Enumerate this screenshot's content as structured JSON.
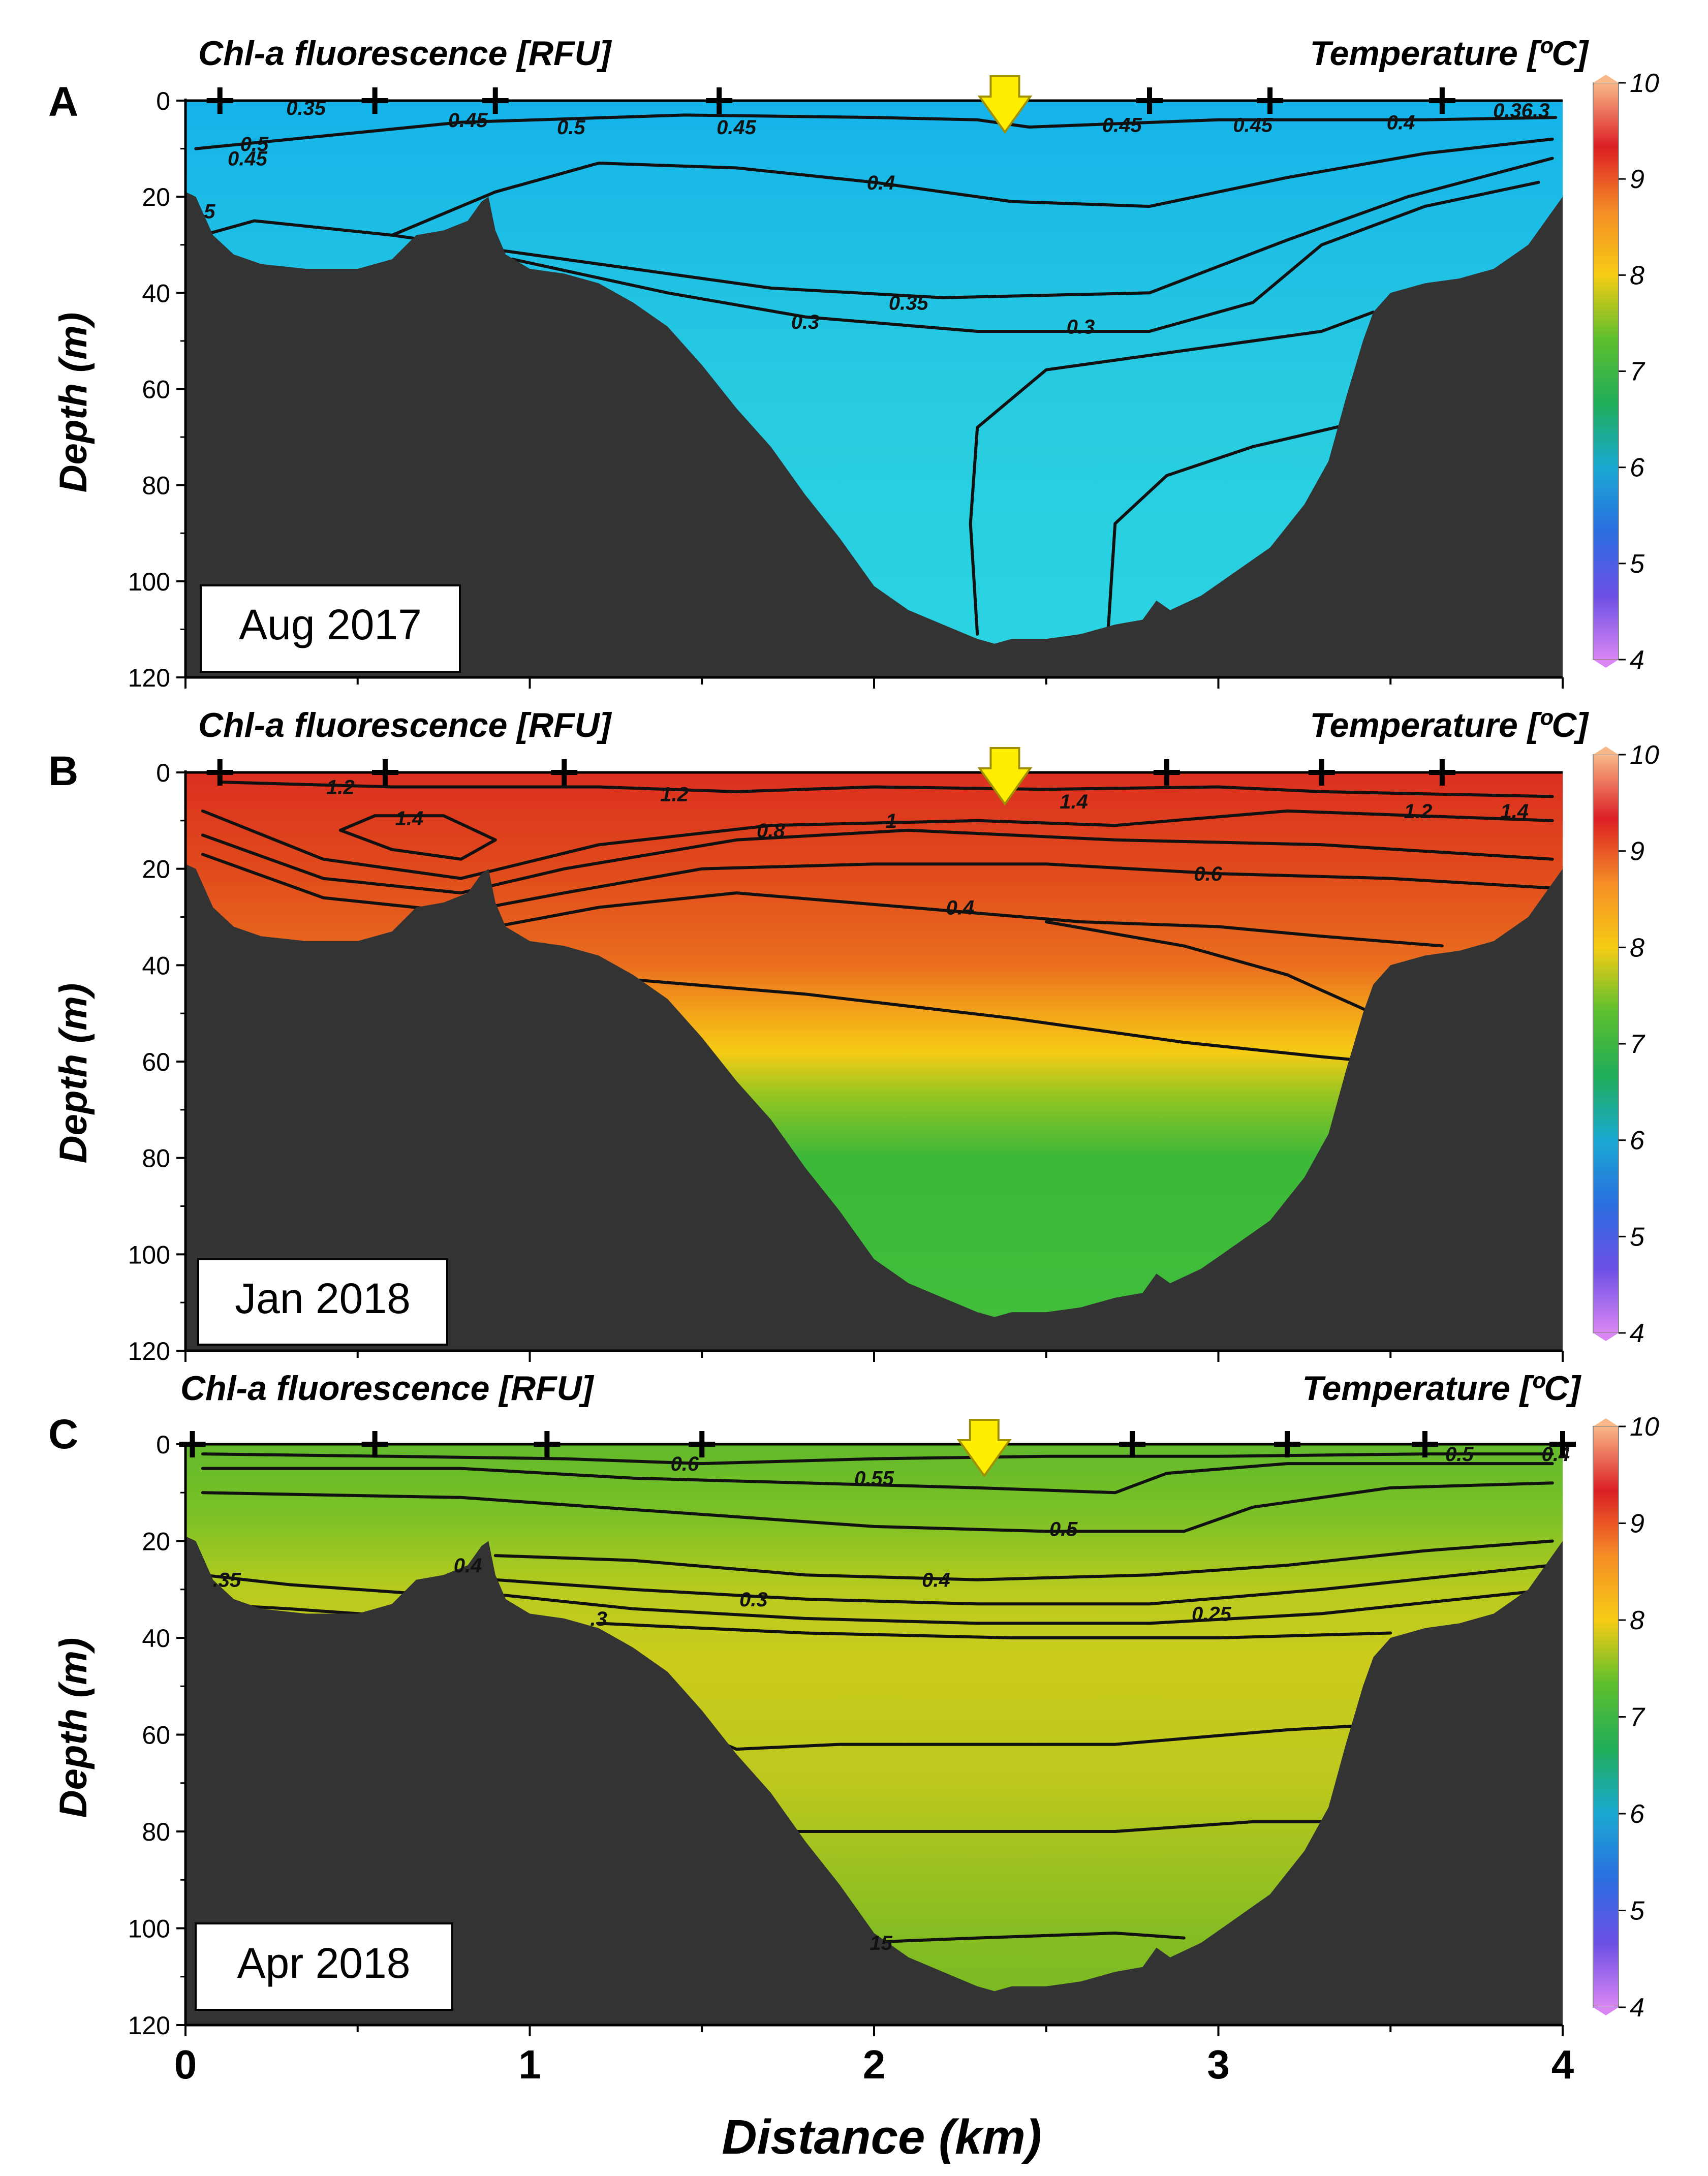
{
  "figure": {
    "xlabel": "Distance (km)",
    "ylabel": "Depth (m)",
    "x_ticks": [
      "0",
      "1",
      "2",
      "3",
      "4"
    ],
    "y_ticks": [
      "0",
      "20",
      "40",
      "60",
      "80",
      "100",
      "120"
    ],
    "colorbar_ticks": [
      "10",
      "9",
      "8",
      "7",
      "6",
      "5",
      "4"
    ],
    "colorbar_stops": [
      "#f8b889",
      "#dc1f24",
      "#f58d26",
      "#f6cc14",
      "#5dbf2e",
      "#1fad59",
      "#1aa9d2",
      "#2a6ee0",
      "#6b4fe4",
      "#d986f3"
    ],
    "bathymetry_color": "#333333"
  },
  "chart_data": [
    {
      "type": "heatmap",
      "panel": "A",
      "title_left": "Chl-a fluorescence [RFU]",
      "title_right": "Temperature [ºC]",
      "date": "Aug 2017",
      "xlim": [
        0,
        4
      ],
      "ylim": [
        120,
        0
      ],
      "colorbar_range": [
        4,
        10
      ],
      "fill_layers": [
        {
          "depth": 0,
          "color": "#14b3ea"
        },
        {
          "depth": 30,
          "color": "#1ebfe5"
        },
        {
          "depth": 60,
          "color": "#27cbe0"
        },
        {
          "depth": 115,
          "color": "#2ad3e2"
        }
      ],
      "station_distances_km": [
        0.1,
        0.55,
        0.9,
        1.55,
        2.8,
        3.15,
        3.65
      ],
      "arrow_km": 2.38,
      "isolines": [
        {
          "label": "0.45",
          "points": [
            [
              0.03,
              10
            ],
            [
              0.8,
              4.5
            ],
            [
              1.45,
              3
            ],
            [
              2.0,
              3.5
            ],
            [
              2.3,
              4
            ],
            [
              2.45,
              5.5
            ],
            [
              3.0,
              4
            ],
            [
              3.6,
              4
            ],
            [
              3.98,
              3.5
            ]
          ]
        },
        {
          "label": "0.4",
          "points": [
            [
              0.6,
              28
            ],
            [
              0.9,
              19
            ],
            [
              1.2,
              13
            ],
            [
              1.6,
              14
            ],
            [
              2.0,
              17
            ],
            [
              2.4,
              21
            ],
            [
              2.8,
              22
            ],
            [
              3.2,
              16
            ],
            [
              3.6,
              11
            ],
            [
              3.97,
              8
            ]
          ]
        },
        {
          "label": "0.35",
          "points": [
            [
              0.05,
              28
            ],
            [
              0.2,
              25
            ],
            [
              0.6,
              28
            ],
            [
              0.9,
              31
            ],
            [
              1.3,
              35
            ],
            [
              1.7,
              39
            ],
            [
              2.2,
              41
            ],
            [
              2.8,
              40
            ],
            [
              3.2,
              29
            ],
            [
              3.55,
              20
            ],
            [
              3.97,
              12
            ]
          ]
        },
        {
          "label": "0.3",
          "points": [
            [
              0.95,
              33
            ],
            [
              1.4,
              40
            ],
            [
              1.8,
              45
            ],
            [
              2.3,
              48
            ],
            [
              2.8,
              48
            ],
            [
              3.1,
              42
            ],
            [
              3.3,
              30
            ],
            [
              3.6,
              22
            ],
            [
              3.93,
              17
            ]
          ]
        },
        {
          "label": "",
          "points": [
            [
              2.3,
              111
            ],
            [
              2.28,
              88
            ],
            [
              2.3,
              68
            ],
            [
              2.5,
              56
            ],
            [
              2.9,
              52
            ],
            [
              3.3,
              48
            ],
            [
              3.45,
              44
            ]
          ]
        },
        {
          "label": "",
          "points": [
            [
              2.68,
              110
            ],
            [
              2.7,
              88
            ],
            [
              2.85,
              78
            ],
            [
              3.1,
              72
            ],
            [
              3.4,
              67
            ]
          ]
        }
      ],
      "labels": [
        "0.35",
        "0.45",
        "0.5",
        "0.45",
        "0.45",
        "0.45",
        "0.4",
        "0.36.3",
        "0.5",
        "0.45",
        "5",
        "0.4",
        "0.35",
        "0.3",
        "0.3"
      ]
    },
    {
      "type": "heatmap",
      "panel": "B",
      "title_left": "Chl-a fluorescence [RFU]",
      "title_right": "Temperature [ºC]",
      "date": "Jan 2018",
      "xlim": [
        0,
        4
      ],
      "ylim": [
        120,
        0
      ],
      "colorbar_range": [
        4,
        10
      ],
      "fill_layers": [
        {
          "depth": 0,
          "color": "#dc2f20"
        },
        {
          "depth": 20,
          "color": "#e04a1c"
        },
        {
          "depth": 40,
          "color": "#ea6e1e"
        },
        {
          "depth": 50,
          "color": "#f3a41a"
        },
        {
          "depth": 58,
          "color": "#f6cc14"
        },
        {
          "depth": 68,
          "color": "#8cc424"
        },
        {
          "depth": 80,
          "color": "#3cb83a"
        },
        {
          "depth": 115,
          "color": "#42be3c"
        }
      ],
      "station_distances_km": [
        0.1,
        0.58,
        1.1,
        2.85,
        3.3,
        3.65
      ],
      "arrow_km": 2.38,
      "isolines": [
        {
          "label": "1.2",
          "points": [
            [
              0.1,
              2
            ],
            [
              0.6,
              3
            ],
            [
              1.2,
              3
            ],
            [
              1.6,
              4
            ],
            [
              2.0,
              3
            ],
            [
              2.5,
              3.5
            ],
            [
              3.0,
              3
            ],
            [
              3.3,
              4
            ],
            [
              3.97,
              5
            ]
          ]
        },
        {
          "label": "1.4",
          "points": [
            [
              0.45,
              12
            ],
            [
              0.6,
              16
            ],
            [
              0.8,
              18
            ],
            [
              0.9,
              14
            ],
            [
              0.75,
              9
            ],
            [
              0.55,
              9
            ],
            [
              0.45,
              12
            ]
          ]
        },
        {
          "label": "1",
          "points": [
            [
              0.05,
              8
            ],
            [
              0.4,
              18
            ],
            [
              0.8,
              22
            ],
            [
              1.2,
              15
            ],
            [
              1.7,
              11
            ],
            [
              2.3,
              10
            ],
            [
              2.7,
              11
            ],
            [
              3.2,
              8
            ],
            [
              3.97,
              10
            ]
          ]
        },
        {
          "label": "0.8",
          "points": [
            [
              0.05,
              13
            ],
            [
              0.4,
              22
            ],
            [
              0.8,
              25
            ],
            [
              1.1,
              20
            ],
            [
              1.6,
              14
            ],
            [
              2.1,
              12
            ],
            [
              2.7,
              14
            ],
            [
              3.3,
              15
            ],
            [
              3.97,
              18
            ]
          ]
        },
        {
          "label": "0.6",
          "points": [
            [
              0.05,
              17
            ],
            [
              0.4,
              26
            ],
            [
              0.8,
              29
            ],
            [
              1.1,
              25
            ],
            [
              1.5,
              20
            ],
            [
              2.0,
              19
            ],
            [
              2.5,
              19
            ],
            [
              3.0,
              21
            ],
            [
              3.5,
              22
            ],
            [
              3.97,
              24
            ]
          ]
        },
        {
          "label": "0.4",
          "points": [
            [
              0.9,
              32
            ],
            [
              1.2,
              28
            ],
            [
              1.6,
              25
            ],
            [
              2.1,
              28
            ],
            [
              2.6,
              31
            ],
            [
              3.0,
              32
            ],
            [
              3.3,
              34
            ],
            [
              3.65,
              36
            ]
          ]
        },
        {
          "label": "",
          "points": [
            [
              2.5,
              31
            ],
            [
              2.9,
              36
            ],
            [
              3.2,
              42
            ],
            [
              3.45,
              50
            ]
          ]
        },
        {
          "label": "",
          "points": [
            [
              1.3,
              43
            ],
            [
              1.8,
              46
            ],
            [
              2.4,
              51
            ],
            [
              2.9,
              56
            ],
            [
              3.3,
              59
            ],
            [
              3.45,
              60
            ]
          ]
        }
      ],
      "labels": [
        "1.2",
        "1.4",
        "1.2",
        "1.4",
        "1.2",
        "1.4",
        "0.8",
        "1",
        "0.6",
        "0.4"
      ]
    },
    {
      "type": "heatmap",
      "panel": "C",
      "title_left": "Chl-a fluorescence [RFU]",
      "title_right": "Temperature [ºC]",
      "date": "Apr 2018",
      "xlim": [
        0,
        4
      ],
      "ylim": [
        120,
        0
      ],
      "colorbar_range": [
        4,
        10
      ],
      "fill_layers": [
        {
          "depth": 0,
          "color": "#62ba2c"
        },
        {
          "depth": 15,
          "color": "#7cc126"
        },
        {
          "depth": 30,
          "color": "#b8cb1f"
        },
        {
          "depth": 45,
          "color": "#cccc1c"
        },
        {
          "depth": 70,
          "color": "#bcc81e"
        },
        {
          "depth": 100,
          "color": "#86bd22"
        },
        {
          "depth": 115,
          "color": "#7aba22"
        }
      ],
      "station_distances_km": [
        0.02,
        0.55,
        1.05,
        1.5,
        2.75,
        3.2,
        3.6,
        4.0
      ],
      "arrow_km": 2.32,
      "isolines": [
        {
          "label": "0.6",
          "points": [
            [
              0.05,
              2
            ],
            [
              0.6,
              2.5
            ],
            [
              1.1,
              3
            ],
            [
              1.5,
              4
            ],
            [
              2.0,
              3
            ],
            [
              2.5,
              2.5
            ],
            [
              3.0,
              2.5
            ],
            [
              3.6,
              2
            ],
            [
              3.97,
              2
            ]
          ]
        },
        {
          "label": "0.55",
          "points": [
            [
              0.05,
              5
            ],
            [
              0.8,
              5
            ],
            [
              1.3,
              7
            ],
            [
              1.8,
              8
            ],
            [
              2.3,
              9
            ],
            [
              2.7,
              10
            ],
            [
              2.85,
              6
            ],
            [
              3.2,
              4
            ],
            [
              3.97,
              4
            ]
          ]
        },
        {
          "label": "0.5",
          "points": [
            [
              0.05,
              10
            ],
            [
              0.8,
              11
            ],
            [
              1.4,
              14
            ],
            [
              2.0,
              17
            ],
            [
              2.5,
              18
            ],
            [
              2.9,
              18
            ],
            [
              3.1,
              13
            ],
            [
              3.5,
              9
            ],
            [
              3.97,
              8
            ]
          ]
        },
        {
          "label": "0.4",
          "points": [
            [
              0.9,
              23
            ],
            [
              1.3,
              24
            ],
            [
              1.8,
              27
            ],
            [
              2.3,
              28
            ],
            [
              2.8,
              27
            ],
            [
              3.2,
              25
            ],
            [
              3.6,
              22
            ],
            [
              3.97,
              20
            ]
          ]
        },
        {
          "label": "0.3",
          "points": [
            [
              0.9,
              28
            ],
            [
              1.3,
              30
            ],
            [
              1.8,
              32
            ],
            [
              2.3,
              33
            ],
            [
              2.8,
              33
            ],
            [
              3.3,
              30
            ],
            [
              3.7,
              27
            ],
            [
              3.97,
              25
            ]
          ]
        },
        {
          "label": "0.25",
          "points": [
            [
              0.9,
              31
            ],
            [
              1.3,
              34
            ],
            [
              1.8,
              36
            ],
            [
              2.3,
              37
            ],
            [
              2.8,
              37
            ],
            [
              3.3,
              35
            ],
            [
              3.7,
              32
            ],
            [
              3.97,
              30
            ]
          ]
        },
        {
          "label": "",
          "points": [
            [
              1.2,
              37
            ],
            [
              1.8,
              39
            ],
            [
              2.4,
              40
            ],
            [
              3.0,
              40
            ],
            [
              3.5,
              39
            ]
          ]
        },
        {
          "label": "",
          "points": [
            [
              0.05,
              27
            ],
            [
              0.3,
              29
            ],
            [
              0.7,
              31
            ]
          ]
        },
        {
          "label": "",
          "points": [
            [
              0.05,
              33
            ],
            [
              0.3,
              34
            ],
            [
              0.7,
              36
            ]
          ]
        },
        {
          "label": "",
          "points": [
            [
              1.5,
              60
            ],
            [
              1.6,
              63
            ],
            [
              1.9,
              62
            ],
            [
              2.3,
              62
            ],
            [
              2.7,
              62
            ],
            [
              3.2,
              59
            ],
            [
              3.45,
              58
            ]
          ]
        },
        {
          "label": "",
          "points": [
            [
              1.75,
              80
            ],
            [
              2.2,
              80
            ],
            [
              2.7,
              80
            ],
            [
              3.1,
              78
            ],
            [
              3.32,
              78
            ]
          ]
        },
        {
          "label": "0.15",
          "points": [
            [
              1.95,
              103
            ],
            [
              2.3,
              102
            ],
            [
              2.7,
              101
            ],
            [
              2.9,
              102
            ]
          ]
        }
      ],
      "labels": [
        "0.6",
        "0.55",
        "0.5",
        "0.4",
        "0.3",
        "0.25",
        ".35",
        "0.4",
        "0.5",
        "0.4",
        ".3",
        "15"
      ]
    }
  ],
  "annotations": {
    "panel_letters": [
      "A",
      "B",
      "C"
    ]
  }
}
